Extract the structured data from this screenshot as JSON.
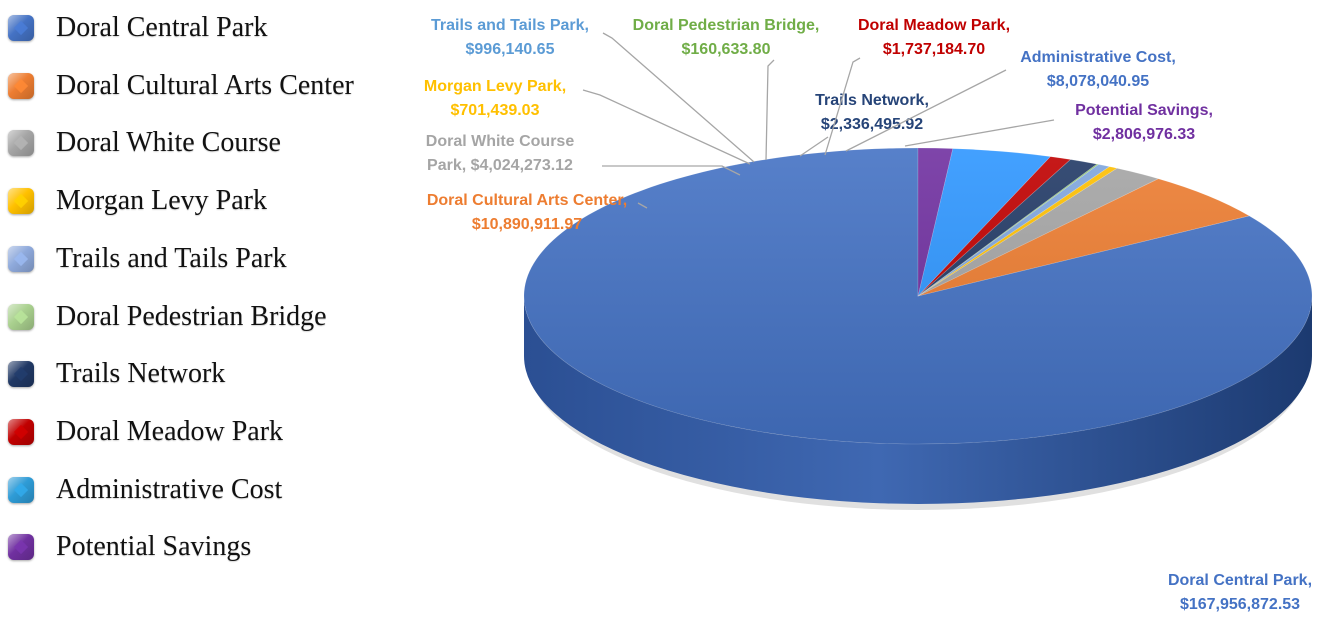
{
  "chart_data": {
    "type": "pie",
    "title": "",
    "categories": [
      "Doral Central Park",
      "Doral Cultural Arts Center",
      "Doral White Course",
      "Morgan Levy Park",
      "Trails and Tails Park",
      "Doral Pedestrian Bridge",
      "Trails Network",
      "Doral Meadow Park",
      "Administrative Cost",
      "Potential Savings"
    ],
    "values": [
      167956872.53,
      10890911.97,
      4024273.12,
      701439.03,
      996140.65,
      160633.8,
      2336495.92,
      1737184.7,
      8078040.95,
      2806976.33
    ],
    "data_labels": [
      [
        "Doral Central Park,",
        "$167,956,872.53"
      ],
      [
        "Doral Cultural Arts Center,",
        "$10,890,911.97"
      ],
      [
        "Doral White Course",
        "Park,  $4,024,273.12"
      ],
      [
        "Morgan Levy Park,",
        "$701,439.03"
      ],
      [
        "Trails and Tails Park,",
        "$996,140.65"
      ],
      [
        "Doral Pedestrian Bridge,",
        "$160,633.80"
      ],
      [
        "Trails Network,",
        "$2,336,495.92"
      ],
      [
        "Doral Meadow Park,",
        "$1,737,184.70"
      ],
      [
        "Administrative Cost,",
        "$8,078,040.95"
      ],
      [
        "Potential Savings,",
        "$2,806,976.33"
      ]
    ],
    "colors": [
      "#4472C4",
      "#ED7D31",
      "#A5A5A5",
      "#FFC000",
      "#7FA6DE",
      "#8CC56A",
      "#223A66",
      "#C00000",
      "#2E96FF",
      "#7030A0"
    ],
    "label_colors": [
      "#4472C4",
      "#ED7D31",
      "#A5A5A5",
      "#FFC000",
      "#5B9BD5",
      "#70AD47",
      "#264478",
      "#C00000",
      "#4472C4",
      "#7030A0"
    ],
    "legend_colors": [
      "#4472C4",
      "#ED7D31",
      "#A5A5A5",
      "#FFC000",
      "#8EA9DB",
      "#A9D08E",
      "#203864",
      "#C00000",
      "#2E9BD6",
      "#7030A0"
    ],
    "legend_position": "left",
    "style": "3d"
  }
}
